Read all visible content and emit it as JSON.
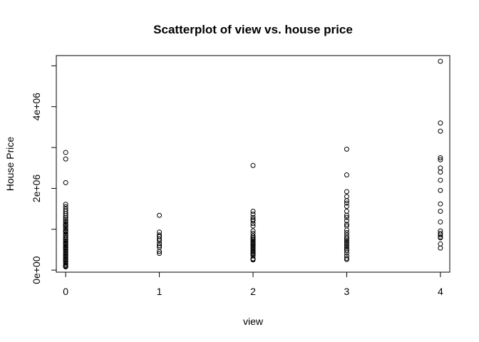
{
  "chart_data": {
    "type": "scatter",
    "title": "Scatterplot of view vs. house price",
    "xlabel": "view",
    "ylabel": "House Price",
    "xlim": [
      -0.1,
      4.1
    ],
    "ylim": [
      -50000,
      5250000
    ],
    "x_ticks": [
      0,
      1,
      2,
      3,
      4
    ],
    "x_tick_labels": [
      "0",
      "1",
      "2",
      "3",
      "4"
    ],
    "y_ticks": [
      0,
      2000000,
      4000000
    ],
    "y_tick_labels": [
      "0e+00",
      "2e+06",
      "4e+06"
    ],
    "grid": false,
    "legend": "none",
    "point_color": "#000000",
    "series": [
      {
        "x": [
          0,
          0,
          0,
          0,
          0,
          0,
          0,
          0,
          0,
          0,
          0,
          0,
          0,
          0,
          0,
          0,
          0,
          0,
          0,
          0,
          0,
          0,
          0,
          0,
          0,
          0,
          0,
          0,
          0,
          0,
          0,
          0,
          0,
          0,
          0,
          0,
          0,
          0,
          0,
          0,
          0,
          0,
          0,
          0,
          0,
          0,
          0,
          0,
          0,
          0,
          0,
          0,
          0,
          0,
          1,
          1,
          1,
          1,
          1,
          1,
          1,
          1,
          1,
          1,
          1,
          2,
          2,
          2,
          2,
          2,
          2,
          2,
          2,
          2,
          2,
          2,
          2,
          2,
          2,
          2,
          2,
          2,
          2,
          2,
          2,
          2,
          2,
          2,
          2,
          2,
          2,
          2,
          2,
          2,
          2,
          2,
          3,
          3,
          3,
          3,
          3,
          3,
          3,
          3,
          3,
          3,
          3,
          3,
          3,
          3,
          3,
          3,
          3,
          3,
          3,
          3,
          3,
          3,
          3,
          3,
          3,
          3,
          3,
          3,
          3,
          4,
          4,
          4,
          4,
          4,
          4,
          4,
          4,
          4,
          4,
          4,
          4,
          4,
          4,
          4,
          4,
          4,
          4,
          4
        ],
        "y": [
          2880000,
          2720000,
          2140000,
          1610000,
          1550000,
          1490000,
          1440000,
          1390000,
          1340000,
          1290000,
          1250000,
          1210000,
          1170000,
          1130000,
          1090000,
          1050000,
          1010000,
          970000,
          930000,
          890000,
          850000,
          810000,
          780000,
          750000,
          720000,
          690000,
          660000,
          630000,
          600000,
          570000,
          540000,
          510000,
          480000,
          450000,
          420000,
          390000,
          360000,
          330000,
          300000,
          270000,
          240000,
          210000,
          180000,
          150000,
          120000,
          100000,
          90000,
          80000,
          1100000,
          950000,
          650000,
          550000,
          350000,
          250000,
          1340000,
          930000,
          860000,
          820000,
          760000,
          720000,
          650000,
          600000,
          560000,
          460000,
          410000,
          2560000,
          1440000,
          1370000,
          1290000,
          1240000,
          1210000,
          1140000,
          1080000,
          960000,
          900000,
          840000,
          800000,
          770000,
          740000,
          710000,
          680000,
          650000,
          620000,
          590000,
          560000,
          530000,
          500000,
          470000,
          440000,
          410000,
          390000,
          350000,
          280000,
          270000,
          250000,
          620000,
          2960000,
          2330000,
          1920000,
          1800000,
          1700000,
          1640000,
          1560000,
          1440000,
          1340000,
          1290000,
          1210000,
          1120000,
          1080000,
          980000,
          920000,
          860000,
          800000,
          760000,
          720000,
          680000,
          640000,
          600000,
          560000,
          520000,
          480000,
          420000,
          350000,
          290000,
          260000,
          5110000,
          3600000,
          3400000,
          2750000,
          2700000,
          2500000,
          2400000,
          2200000,
          1950000,
          1620000,
          1440000,
          1180000,
          960000,
          900000,
          860000,
          810000,
          790000,
          640000,
          540000
        ]
      }
    ]
  }
}
